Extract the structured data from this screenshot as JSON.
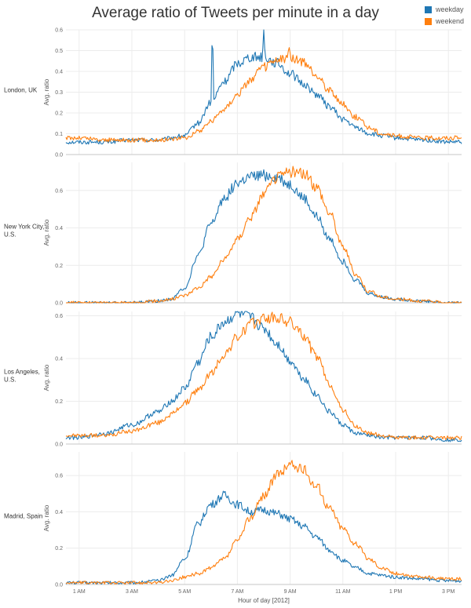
{
  "chart_data": {
    "type": "line",
    "title": "Average ratio of Tweets per minute in a day",
    "xlabel": "Hour of day [2012]",
    "ylabel": "Avg. ratio",
    "xlim": [
      0.5,
      15.5
    ],
    "x_ticks": [
      {
        "value": 1,
        "label": "1 AM"
      },
      {
        "value": 3,
        "label": "3 AM"
      },
      {
        "value": 5,
        "label": "5 AM"
      },
      {
        "value": 7,
        "label": "7 AM"
      },
      {
        "value": 9,
        "label": "9 AM"
      },
      {
        "value": 11,
        "label": "11 AM"
      },
      {
        "value": 13,
        "label": "1 PM"
      },
      {
        "value": 15,
        "label": "3 PM"
      }
    ],
    "legend": {
      "placement": "top-right",
      "entries": [
        {
          "name": "weekday",
          "color": "#1f77b4"
        },
        {
          "name": "weekend",
          "color": "#ff7f0e"
        }
      ]
    },
    "panels": [
      {
        "row_label": "London, UK",
        "ylim": [
          0,
          0.6
        ],
        "y_ticks": [
          0.0,
          0.1,
          0.2,
          0.3,
          0.4,
          0.5,
          0.6
        ],
        "series": [
          {
            "name": "weekday",
            "color": "#1f77b4",
            "x": [
              0.5,
              1,
              2,
              3,
              4,
              5,
              5.5,
              6,
              6.5,
              7,
              7.5,
              8,
              8.5,
              9,
              9.5,
              10,
              10.5,
              11,
              11.5,
              12,
              12.5,
              13,
              14,
              15,
              15.5
            ],
            "y": [
              0.06,
              0.06,
              0.06,
              0.07,
              0.07,
              0.09,
              0.15,
              0.25,
              0.35,
              0.44,
              0.47,
              0.47,
              0.44,
              0.39,
              0.34,
              0.29,
              0.23,
              0.17,
              0.13,
              0.1,
              0.09,
              0.08,
              0.07,
              0.06,
              0.06
            ],
            "spikes": [
              {
                "x": 6.05,
                "y": 0.56
              },
              {
                "x": 8.0,
                "y": 0.6
              }
            ]
          },
          {
            "name": "weekend",
            "color": "#ff7f0e",
            "x": [
              0.5,
              1,
              2,
              3,
              4,
              5,
              5.5,
              6,
              6.5,
              7,
              7.5,
              8,
              8.5,
              9,
              9.5,
              10,
              10.5,
              11,
              11.5,
              12,
              12.5,
              13,
              14,
              15,
              15.5
            ],
            "y": [
              0.08,
              0.08,
              0.07,
              0.07,
              0.07,
              0.08,
              0.11,
              0.16,
              0.22,
              0.29,
              0.36,
              0.42,
              0.45,
              0.47,
              0.44,
              0.38,
              0.31,
              0.24,
              0.18,
              0.13,
              0.1,
              0.09,
              0.08,
              0.08,
              0.08
            ],
            "spikes": [
              {
                "x": 8.95,
                "y": 0.55
              }
            ]
          }
        ]
      },
      {
        "row_label": "New York City, U.S.",
        "ylim": [
          0,
          0.75
        ],
        "y_ticks": [
          0.0,
          0.2,
          0.4,
          0.6
        ],
        "series": [
          {
            "name": "weekday",
            "color": "#1f77b4",
            "x": [
              0.5,
              1,
              2,
              3,
              4,
              4.5,
              5,
              5.5,
              6,
              6.5,
              7,
              7.5,
              8,
              8.5,
              9,
              9.5,
              10,
              10.5,
              11,
              11.5,
              12,
              12.5,
              13,
              14,
              15,
              15.5
            ],
            "y": [
              0.0,
              0.0,
              0.0,
              0.0,
              0.01,
              0.02,
              0.08,
              0.25,
              0.42,
              0.56,
              0.64,
              0.67,
              0.68,
              0.67,
              0.63,
              0.56,
              0.46,
              0.34,
              0.22,
              0.12,
              0.05,
              0.03,
              0.02,
              0.01,
              0.0,
              0.0
            ]
          },
          {
            "name": "weekend",
            "color": "#ff7f0e",
            "x": [
              0.5,
              1,
              2,
              3,
              4,
              4.5,
              5,
              5.5,
              6,
              6.5,
              7,
              7.5,
              8,
              8.5,
              9,
              9.5,
              10,
              10.5,
              11,
              11.5,
              12,
              12.5,
              13,
              14,
              15,
              15.5
            ],
            "y": [
              0.0,
              0.0,
              0.0,
              0.0,
              0.01,
              0.02,
              0.04,
              0.08,
              0.14,
              0.23,
              0.34,
              0.46,
              0.58,
              0.67,
              0.7,
              0.69,
              0.62,
              0.48,
              0.3,
              0.15,
              0.06,
              0.03,
              0.02,
              0.01,
              0.0,
              0.0
            ]
          }
        ]
      },
      {
        "row_label": "Los Angeles, U.S.",
        "ylim": [
          0,
          0.62
        ],
        "y_ticks": [
          0.0,
          0.2,
          0.4,
          0.6
        ],
        "series": [
          {
            "name": "weekday",
            "color": "#1f77b4",
            "x": [
              0.5,
              1,
              2,
              3,
              4,
              4.5,
              5,
              5.5,
              6,
              6.5,
              7,
              7.5,
              8,
              8.5,
              9,
              9.5,
              10,
              10.5,
              11,
              11.5,
              12,
              12.5,
              13,
              14,
              15,
              15.5
            ],
            "y": [
              0.03,
              0.03,
              0.05,
              0.09,
              0.15,
              0.2,
              0.26,
              0.38,
              0.5,
              0.57,
              0.61,
              0.59,
              0.54,
              0.47,
              0.39,
              0.31,
              0.23,
              0.15,
              0.09,
              0.05,
              0.04,
              0.03,
              0.03,
              0.03,
              0.02,
              0.02
            ]
          },
          {
            "name": "weekend",
            "color": "#ff7f0e",
            "x": [
              0.5,
              1,
              2,
              3,
              4,
              4.5,
              5,
              5.5,
              6,
              6.5,
              7,
              7.5,
              8,
              8.5,
              9,
              9.5,
              10,
              10.5,
              11,
              11.5,
              12,
              12.5,
              13,
              14,
              15,
              15.5
            ],
            "y": [
              0.04,
              0.04,
              0.04,
              0.06,
              0.1,
              0.14,
              0.19,
              0.25,
              0.33,
              0.42,
              0.5,
              0.56,
              0.59,
              0.59,
              0.57,
              0.51,
              0.41,
              0.28,
              0.16,
              0.08,
              0.05,
              0.04,
              0.03,
              0.03,
              0.03,
              0.03
            ]
          }
        ]
      },
      {
        "row_label": "Madrid, Spain",
        "ylim": [
          0,
          0.73
        ],
        "y_ticks": [
          0.0,
          0.2,
          0.4,
          0.6
        ],
        "series": [
          {
            "name": "weekday",
            "color": "#1f77b4",
            "x": [
              0.5,
              1,
              2,
              3,
              4,
              4.5,
              5,
              5.5,
              6,
              6.5,
              7,
              7.5,
              8,
              8.5,
              9,
              9.5,
              10,
              10.5,
              11,
              11.5,
              12,
              12.5,
              13,
              14,
              15,
              15.5
            ],
            "y": [
              0.01,
              0.01,
              0.01,
              0.01,
              0.02,
              0.05,
              0.14,
              0.33,
              0.44,
              0.49,
              0.44,
              0.4,
              0.41,
              0.39,
              0.36,
              0.32,
              0.26,
              0.19,
              0.13,
              0.09,
              0.06,
              0.05,
              0.04,
              0.03,
              0.02,
              0.02
            ]
          },
          {
            "name": "weekend",
            "color": "#ff7f0e",
            "x": [
              0.5,
              1,
              2,
              3,
              4,
              4.5,
              5,
              5.5,
              6,
              6.5,
              7,
              7.5,
              8,
              8.5,
              9,
              9.5,
              10,
              10.5,
              11,
              11.5,
              12,
              12.5,
              13,
              14,
              15,
              15.5
            ],
            "y": [
              0.01,
              0.01,
              0.01,
              0.01,
              0.01,
              0.02,
              0.04,
              0.06,
              0.09,
              0.14,
              0.24,
              0.37,
              0.49,
              0.6,
              0.66,
              0.63,
              0.54,
              0.42,
              0.31,
              0.22,
              0.14,
              0.09,
              0.06,
              0.04,
              0.03,
              0.03
            ]
          }
        ]
      }
    ]
  }
}
